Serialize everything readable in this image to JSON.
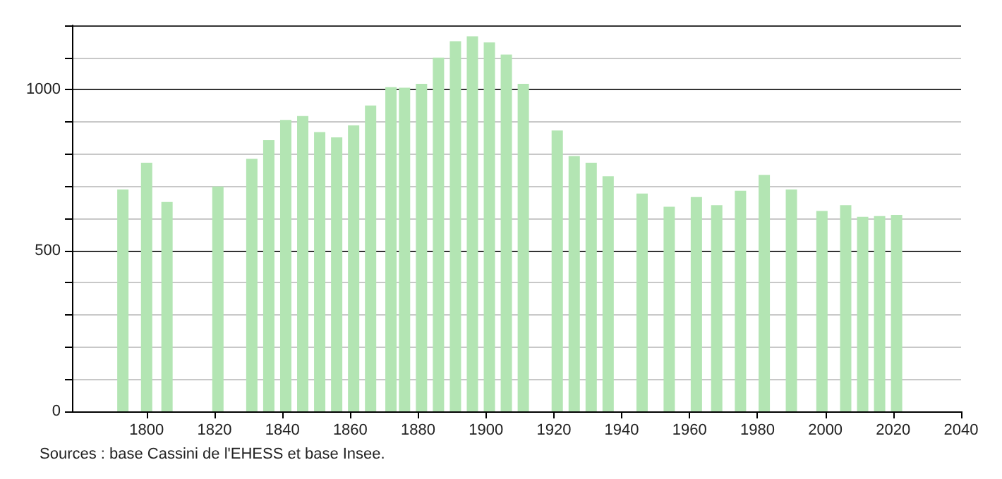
{
  "chart_data": {
    "type": "bar",
    "x": [
      1793,
      1800,
      1806,
      1821,
      1831,
      1836,
      1841,
      1846,
      1851,
      1856,
      1861,
      1866,
      1872,
      1876,
      1881,
      1886,
      1891,
      1896,
      1901,
      1906,
      1911,
      1921,
      1926,
      1931,
      1936,
      1946,
      1954,
      1962,
      1968,
      1975,
      1982,
      1990,
      1999,
      2006,
      2011,
      2016,
      2021
    ],
    "values": [
      690,
      773,
      651,
      699,
      785,
      843,
      906,
      918,
      868,
      852,
      889,
      951,
      1008,
      1006,
      1018,
      1100,
      1151,
      1166,
      1147,
      1109,
      1018,
      873,
      794,
      773,
      731,
      677,
      636,
      666,
      641,
      686,
      735,
      690,
      623,
      641,
      605,
      607,
      611
    ],
    "color": "#b3e5b3",
    "xlim": [
      1778,
      2040
    ],
    "xticks": [
      1800,
      1820,
      1840,
      1860,
      1880,
      1900,
      1920,
      1940,
      1960,
      1980,
      2000,
      2020,
      2040
    ],
    "ylim": [
      0,
      1200
    ],
    "yticks": [
      0,
      {
        "value": 100,
        "label": null
      },
      {
        "value": 200,
        "label": null
      },
      {
        "value": 300,
        "label": null
      },
      {
        "value": 400,
        "label": null
      },
      500,
      {
        "value": 600,
        "label": null
      },
      {
        "value": 700,
        "label": null
      },
      {
        "value": 800,
        "label": null
      },
      {
        "value": 900,
        "label": null
      },
      1000,
      {
        "value": 1100,
        "label": null
      },
      {
        "value": 1200,
        "label": null
      }
    ],
    "grid": "y",
    "annotations": [
      "Sources : base Cassini de l'EHESS et base Insee."
    ]
  }
}
